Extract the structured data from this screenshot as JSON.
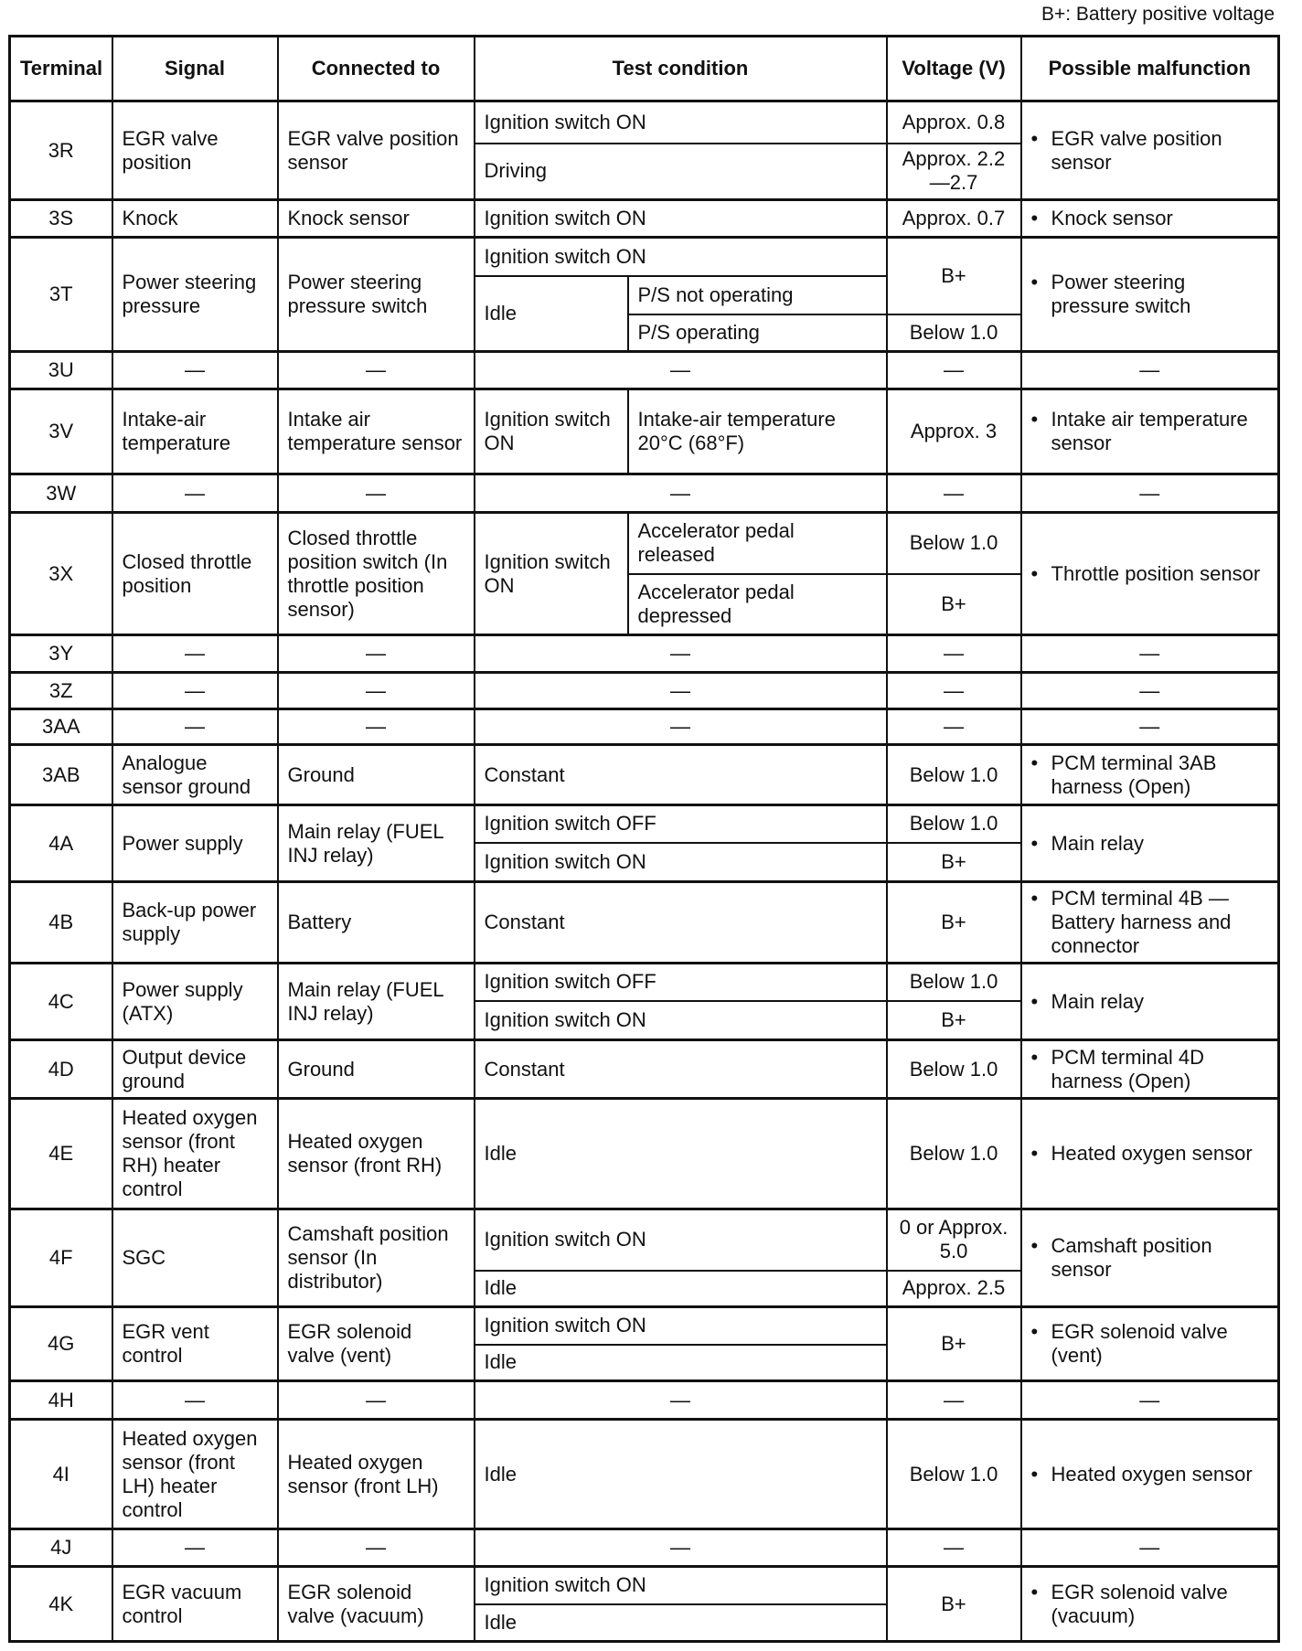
{
  "note": "B+: Battery positive voltage",
  "headers": {
    "terminal": "Terminal",
    "signal": "Signal",
    "connected": "Connected to",
    "test": "Test condition",
    "voltage": "Voltage (V)",
    "malfunction": "Possible malfunction"
  },
  "bullet": "•",
  "rows": [
    {
      "terminal": "3R",
      "signal": "EGR valve position",
      "connected": "EGR valve position sensor",
      "tests": [
        {
          "cond": "Ignition switch ON",
          "voltage": "Approx. 0.8"
        },
        {
          "cond": "Driving",
          "voltage": "Approx. 2.2—2.7"
        }
      ],
      "malfunction": "EGR valve position sensor"
    },
    {
      "terminal": "3S",
      "signal": "Knock",
      "connected": "Knock sensor",
      "tests": [
        {
          "cond": "Ignition switch ON",
          "voltage": "Approx. 0.7"
        }
      ],
      "malfunction": "Knock sensor"
    },
    {
      "terminal": "3T",
      "signal": "Power steering pressure",
      "connected": "Power steering pressure switch",
      "tests": [
        {
          "cond": "Ignition switch ON",
          "voltage": "B+"
        },
        {
          "cond": "Idle",
          "sub": "P/S not operating"
        },
        {
          "sub": "P/S operating",
          "voltage": "Below 1.0"
        }
      ],
      "malfunction": "Power steering pressure switch"
    },
    {
      "terminal": "3U",
      "dash": "—"
    },
    {
      "terminal": "3V",
      "signal": "Intake-air temperature",
      "connected": "Intake air temperature sensor",
      "tests": [
        {
          "cond": "Ignition switch ON",
          "sub": "Intake-air temperature 20°C (68°F)",
          "voltage": "Approx. 3"
        }
      ],
      "malfunction": "Intake air temperature sensor"
    },
    {
      "terminal": "3W",
      "dash": "—"
    },
    {
      "terminal": "3X",
      "signal": "Closed throttle position",
      "connected": "Closed throttle position switch (In throttle position sensor)",
      "tests": [
        {
          "cond": "Ignition switch ON",
          "sub": "Accelerator pedal released",
          "voltage": "Below 1.0"
        },
        {
          "sub": "Accelerator pedal depressed",
          "voltage": "B+"
        }
      ],
      "malfunction": "Throttle position sensor"
    },
    {
      "terminal": "3Y",
      "dash": "—"
    },
    {
      "terminal": "3Z",
      "dash": "—"
    },
    {
      "terminal": "3AA",
      "dash": "—"
    },
    {
      "terminal": "3AB",
      "signal": "Analogue sensor ground",
      "connected": "Ground",
      "tests": [
        {
          "cond": "Constant",
          "voltage": "Below 1.0"
        }
      ],
      "malfunction": "PCM terminal 3AB harness (Open)"
    },
    {
      "terminal": "4A",
      "signal": "Power supply",
      "connected": "Main relay (FUEL INJ relay)",
      "tests": [
        {
          "cond": "Ignition switch OFF",
          "voltage": "Below 1.0"
        },
        {
          "cond": "Ignition switch ON",
          "voltage": "B+"
        }
      ],
      "malfunction": "Main relay"
    },
    {
      "terminal": "4B",
      "signal": "Back-up power supply",
      "connected": "Battery",
      "tests": [
        {
          "cond": "Constant",
          "voltage": "B+"
        }
      ],
      "malfunction": "PCM terminal 4B — Battery harness and connector"
    },
    {
      "terminal": "4C",
      "signal": "Power supply (ATX)",
      "connected": "Main relay (FUEL INJ relay)",
      "tests": [
        {
          "cond": "Ignition switch OFF",
          "voltage": "Below 1.0"
        },
        {
          "cond": "Ignition switch ON",
          "voltage": "B+"
        }
      ],
      "malfunction": "Main relay"
    },
    {
      "terminal": "4D",
      "signal": "Output device ground",
      "connected": "Ground",
      "tests": [
        {
          "cond": "Constant",
          "voltage": "Below 1.0"
        }
      ],
      "malfunction": "PCM terminal 4D harness (Open)"
    },
    {
      "terminal": "4E",
      "signal": "Heated oxygen sensor (front RH) heater control",
      "connected": "Heated oxygen sensor (front RH)",
      "tests": [
        {
          "cond": "Idle",
          "voltage": "Below 1.0"
        }
      ],
      "malfunction": "Heated oxygen sensor"
    },
    {
      "terminal": "4F",
      "signal": "SGC",
      "connected": "Camshaft position sensor (In distributor)",
      "tests": [
        {
          "cond": "Ignition switch ON",
          "voltage": "0 or Approx. 5.0"
        },
        {
          "cond": "Idle",
          "voltage": "Approx. 2.5"
        }
      ],
      "malfunction": "Camshaft position sensor"
    },
    {
      "terminal": "4G",
      "signal": "EGR vent control",
      "connected": "EGR solenoid valve (vent)",
      "tests": [
        {
          "cond": "Ignition switch ON",
          "voltage": "B+"
        },
        {
          "cond": "Idle"
        }
      ],
      "malfunction": "EGR solenoid valve (vent)"
    },
    {
      "terminal": "4H",
      "dash": "—"
    },
    {
      "terminal": "4I",
      "signal": "Heated oxygen sensor (front LH) heater control",
      "connected": "Heated oxygen sensor (front LH)",
      "tests": [
        {
          "cond": "Idle",
          "voltage": "Below 1.0"
        }
      ],
      "malfunction": "Heated oxygen sensor"
    },
    {
      "terminal": "4J",
      "dash": "—"
    },
    {
      "terminal": "4K",
      "signal": "EGR vacuum control",
      "connected": "EGR solenoid valve (vacuum)",
      "tests": [
        {
          "cond": "Ignition switch ON",
          "voltage": "B+"
        },
        {
          "cond": "Idle"
        }
      ],
      "malfunction": "EGR solenoid valve (vacuum)"
    }
  ]
}
